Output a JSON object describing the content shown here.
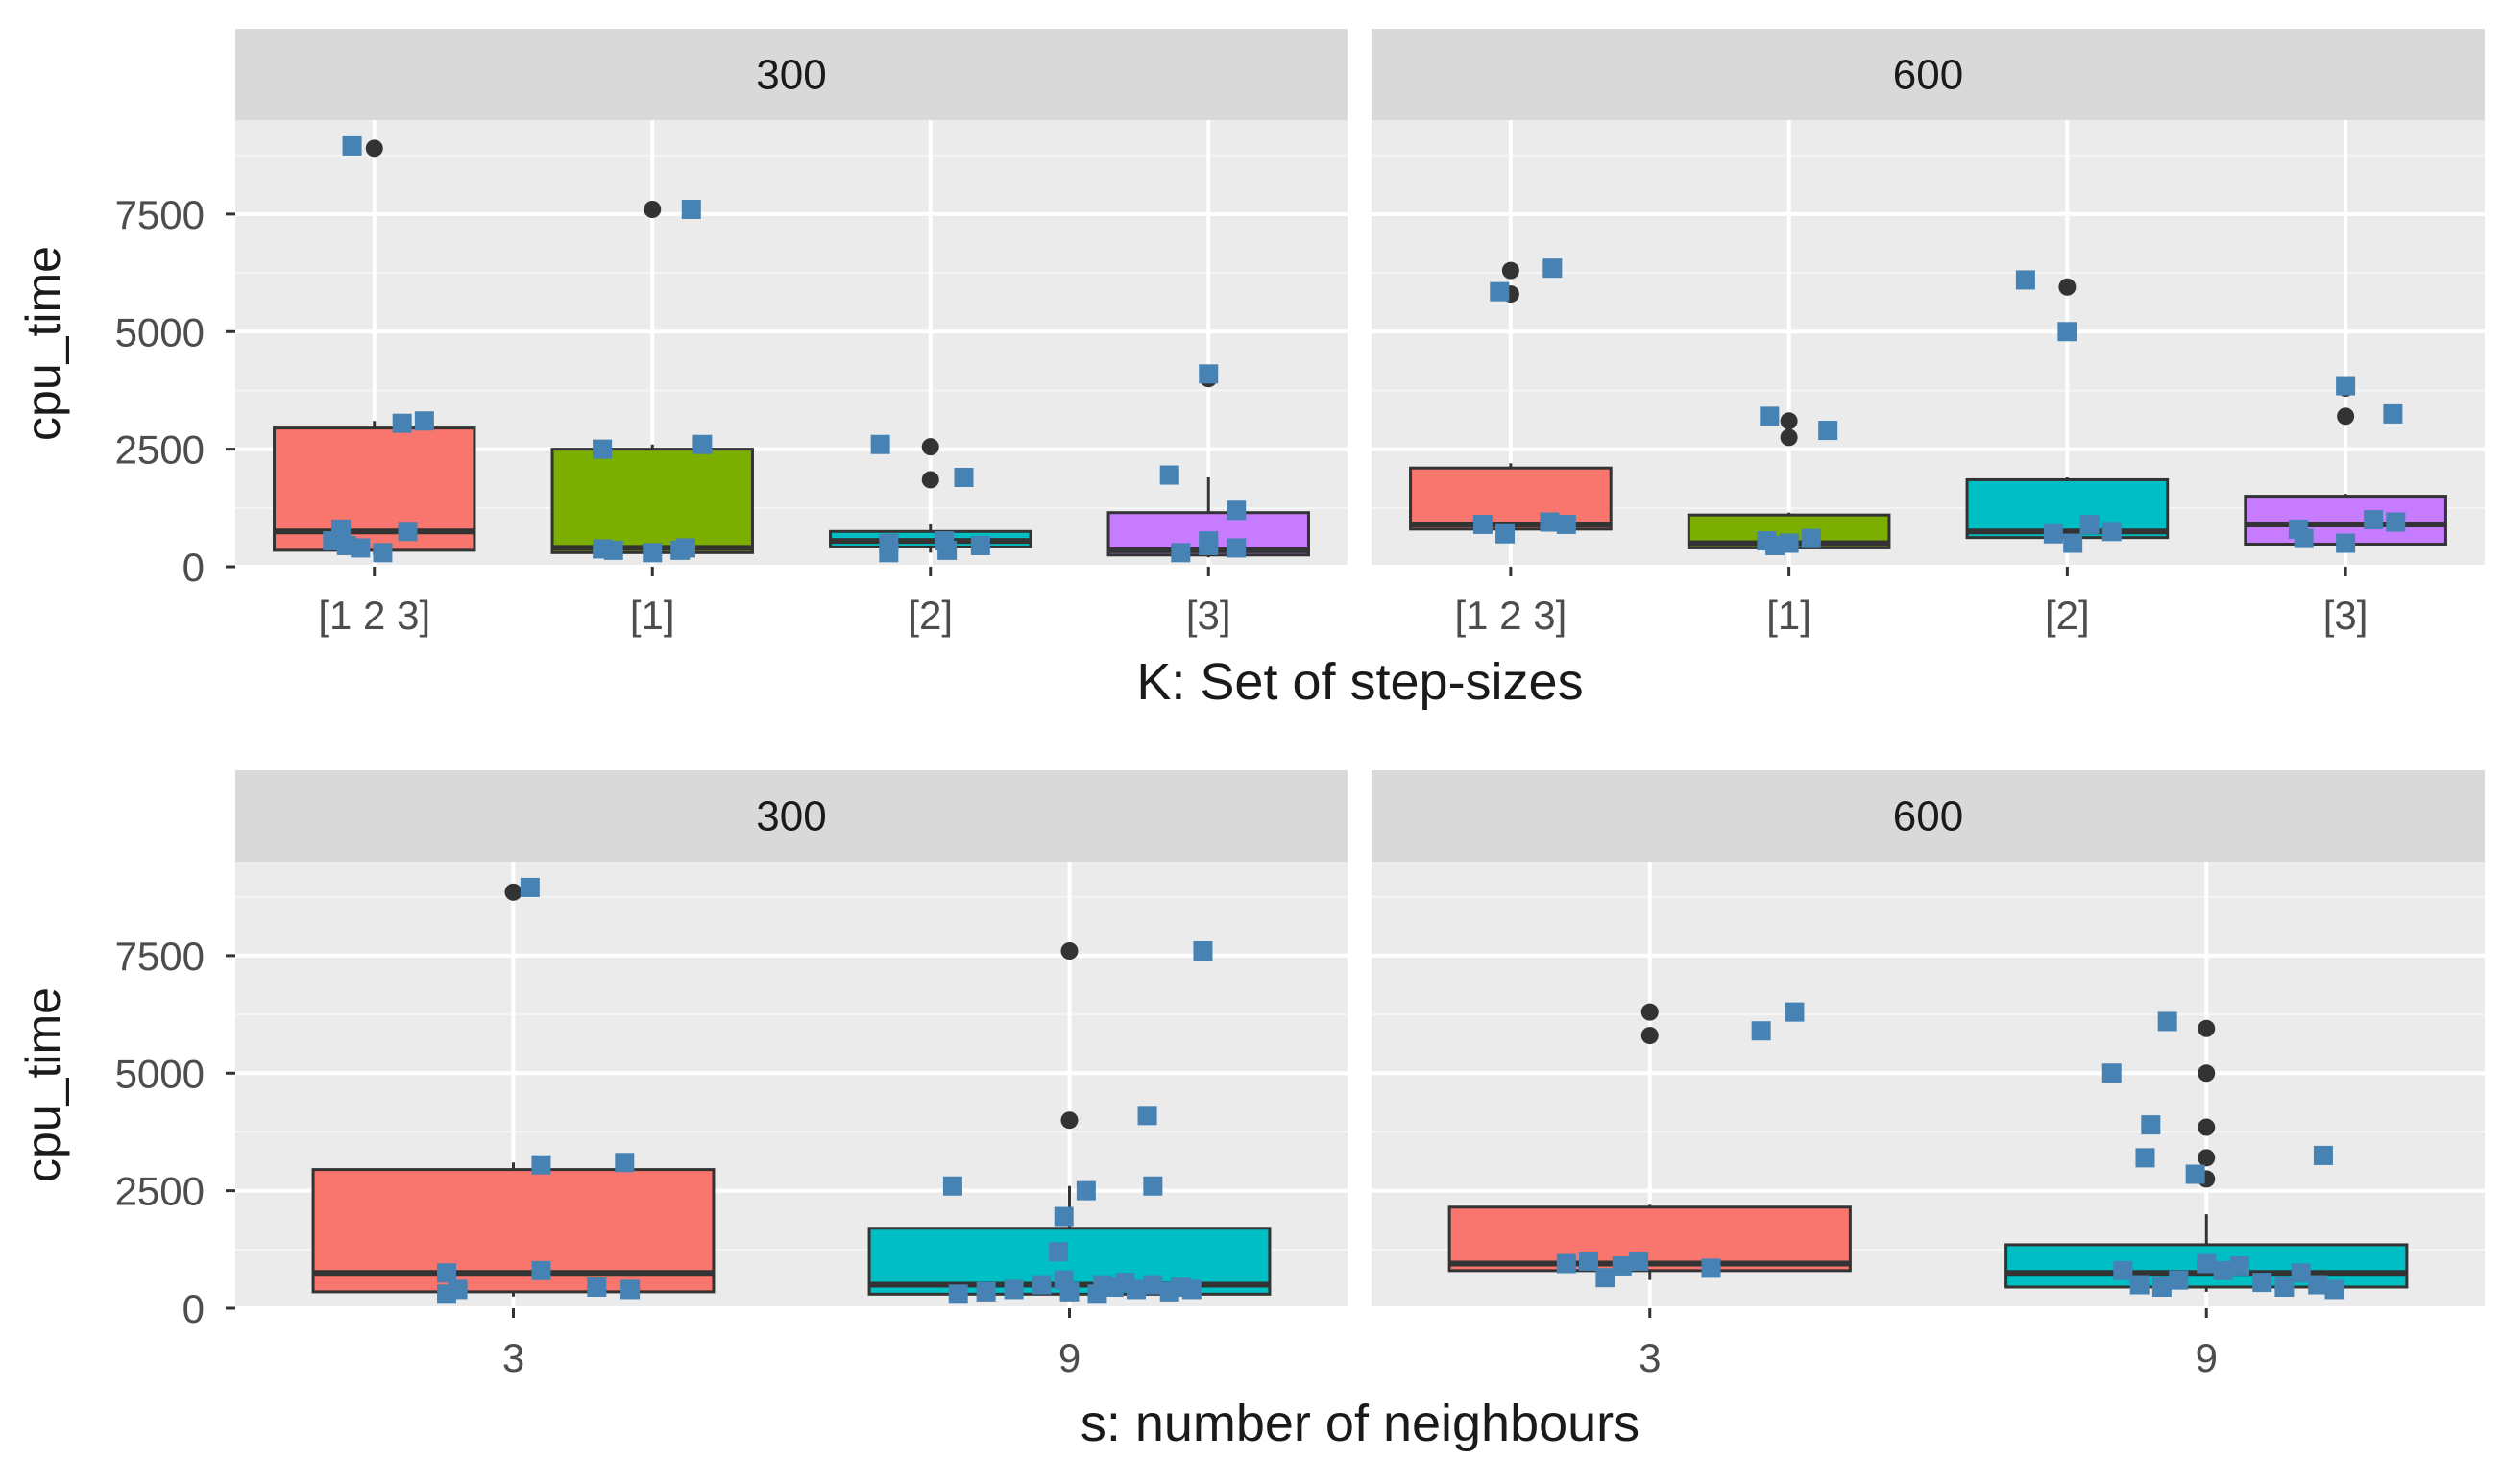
{
  "colors": {
    "panel_bg": "#EBEBEB",
    "strip_bg": "#D9D9D9",
    "grid_major": "#FFFFFF",
    "grid_minor": "#F5F5F5",
    "axis_text": "#4D4D4D",
    "title_text": "#1A1A1A",
    "box_line": "#333333",
    "outlier": "#333333",
    "jitter": "#4682B4",
    "red": "#F8766D",
    "green": "#7CAE00",
    "cyan": "#00BFC4",
    "purple": "#C77CFF"
  },
  "chart_data": [
    {
      "type": "box",
      "title": "",
      "xlabel": "K: Set of step-sizes",
      "ylabel": "cpu_time",
      "ylim": [
        0,
        9500
      ],
      "yticks": [
        0,
        2500,
        5000,
        7500
      ],
      "ytick_labels": [
        "0",
        "2500",
        "5000",
        "7500"
      ],
      "categories": [
        "[1 2 3]",
        "[1]",
        "[2]",
        "[3]"
      ],
      "box_colors": [
        "red",
        "green",
        "cyan",
        "purple"
      ],
      "facets": [
        {
          "label": "300",
          "boxes": [
            {
              "q1": 350,
              "median": 750,
              "q3": 2950,
              "wlow": 250,
              "whigh": 3100,
              "outliers": [
                8900
              ]
            },
            {
              "q1": 300,
              "median": 400,
              "q3": 2500,
              "wlow": 250,
              "whigh": 2600,
              "outliers": [
                7600
              ]
            },
            {
              "q1": 420,
              "median": 550,
              "q3": 750,
              "wlow": 300,
              "whigh": 900,
              "outliers": [
                1850,
                2550
              ]
            },
            {
              "q1": 250,
              "median": 350,
              "q3": 1150,
              "wlow": 200,
              "whigh": 1900,
              "outliers": [
                4000
              ]
            }
          ],
          "jitter": [
            [
              [
                -0.08,
                8950
              ],
              [
                0.18,
                3100
              ],
              [
                0.1,
                3050
              ],
              [
                0.12,
                750
              ],
              [
                -0.12,
                800
              ],
              [
                -0.05,
                400
              ],
              [
                -0.15,
                550
              ],
              [
                0.03,
                300
              ],
              [
                -0.1,
                450
              ]
            ],
            [
              [
                -0.18,
                2500
              ],
              [
                0.18,
                2600
              ],
              [
                0.14,
                7600
              ],
              [
                0.1,
                350
              ],
              [
                -0.14,
                350
              ],
              [
                0.0,
                300
              ],
              [
                -0.18,
                380
              ],
              [
                0.12,
                400
              ]
            ],
            [
              [
                -0.18,
                2600
              ],
              [
                0.12,
                1900
              ],
              [
                -0.15,
                500
              ],
              [
                0.05,
                550
              ],
              [
                -0.15,
                300
              ],
              [
                0.18,
                450
              ],
              [
                0.06,
                350
              ]
            ],
            [
              [
                -0.14,
                1950
              ],
              [
                0.0,
                4100
              ],
              [
                0.1,
                1200
              ],
              [
                -0.1,
                300
              ],
              [
                0.0,
                550
              ],
              [
                0.1,
                400
              ],
              [
                0.0,
                450
              ]
            ]
          ]
        },
        {
          "label": "600",
          "boxes": [
            {
              "q1": 800,
              "median": 900,
              "q3": 2100,
              "wlow": 600,
              "whigh": 2200,
              "outliers": [
                5800,
                6300
              ]
            },
            {
              "q1": 400,
              "median": 500,
              "q3": 1100,
              "wlow": 350,
              "whigh": 1150,
              "outliers": [
                2750,
                3100
              ]
            },
            {
              "q1": 620,
              "median": 750,
              "q3": 1850,
              "wlow": 450,
              "whigh": 1900,
              "outliers": [
                5000,
                5950
              ]
            },
            {
              "q1": 480,
              "median": 900,
              "q3": 1500,
              "wlow": 450,
              "whigh": 1550,
              "outliers": [
                3200,
                3800
              ]
            }
          ],
          "jitter": [
            [
              [
                -0.04,
                5850
              ],
              [
                0.15,
                6350
              ],
              [
                -0.1,
                900
              ],
              [
                -0.02,
                700
              ],
              [
                0.14,
                950
              ],
              [
                0.2,
                900
              ]
            ],
            [
              [
                -0.07,
                3200
              ],
              [
                0.14,
                2900
              ],
              [
                -0.08,
                550
              ],
              [
                0.0,
                500
              ],
              [
                0.08,
                600
              ],
              [
                -0.05,
                450
              ]
            ],
            [
              [
                -0.15,
                6100
              ],
              [
                0.0,
                5000
              ],
              [
                -0.05,
                700
              ],
              [
                0.02,
                500
              ],
              [
                0.08,
                900
              ],
              [
                0.16,
                750
              ]
            ],
            [
              [
                0.0,
                3850
              ],
              [
                0.17,
                3250
              ],
              [
                -0.17,
                800
              ],
              [
                0.1,
                1000
              ],
              [
                0.0,
                500
              ],
              [
                0.18,
                950
              ],
              [
                -0.15,
                600
              ]
            ]
          ]
        }
      ]
    },
    {
      "type": "box",
      "title": "",
      "xlabel": "s: number of neighbours",
      "ylabel": "cpu_time",
      "ylim": [
        0,
        9500
      ],
      "yticks": [
        0,
        2500,
        5000,
        7500
      ],
      "ytick_labels": [
        "0",
        "2500",
        "5000",
        "7500"
      ],
      "categories": [
        "3",
        "9"
      ],
      "box_colors": [
        "red",
        "cyan"
      ],
      "facets": [
        {
          "label": "300",
          "boxes": [
            {
              "q1": 350,
              "median": 750,
              "q3": 2950,
              "wlow": 250,
              "whigh": 3100,
              "outliers": [
                8850
              ]
            },
            {
              "q1": 300,
              "median": 500,
              "q3": 1700,
              "wlow": 250,
              "whigh": 2600,
              "outliers": [
                4000,
                7600
              ]
            }
          ],
          "jitter": [
            [
              [
                0.03,
                8950
              ],
              [
                0.05,
                3050
              ],
              [
                0.2,
                3100
              ],
              [
                -0.12,
                750
              ],
              [
                0.05,
                800
              ],
              [
                0.15,
                450
              ],
              [
                -0.12,
                300
              ],
              [
                -0.1,
                400
              ],
              [
                0.21,
                400
              ]
            ],
            [
              [
                -0.21,
                2600
              ],
              [
                -0.01,
                1950
              ],
              [
                0.03,
                2500
              ],
              [
                0.15,
                2600
              ],
              [
                0.14,
                4100
              ],
              [
                0.24,
                7600
              ],
              [
                -0.02,
                1200
              ],
              [
                -0.2,
                300
              ],
              [
                -0.15,
                350
              ],
              [
                -0.1,
                400
              ],
              [
                -0.05,
                500
              ],
              [
                0.0,
                350
              ],
              [
                0.05,
                300
              ],
              [
                0.08,
                450
              ],
              [
                0.1,
                550
              ],
              [
                0.12,
                400
              ],
              [
                0.15,
                500
              ],
              [
                0.18,
                350
              ],
              [
                0.2,
                450
              ],
              [
                0.22,
                400
              ],
              [
                -0.01,
                600
              ],
              [
                0.06,
                500
              ]
            ]
          ]
        },
        {
          "label": "600",
          "boxes": [
            {
              "q1": 800,
              "median": 950,
              "q3": 2150,
              "wlow": 600,
              "whigh": 2200,
              "outliers": [
                5800,
                6300
              ]
            },
            {
              "q1": 450,
              "median": 750,
              "q3": 1350,
              "wlow": 350,
              "whigh": 2000,
              "outliers": [
                2750,
                3200,
                3850,
                5000,
                5950
              ]
            }
          ],
          "jitter": [
            [
              [
                0.2,
                5900
              ],
              [
                0.26,
                6300
              ],
              [
                -0.15,
                950
              ],
              [
                -0.11,
                1000
              ],
              [
                -0.08,
                650
              ],
              [
                -0.05,
                900
              ],
              [
                -0.02,
                1000
              ],
              [
                0.11,
                850
              ]
            ],
            [
              [
                -0.17,
                5000
              ],
              [
                -0.07,
                6100
              ],
              [
                -0.1,
                3900
              ],
              [
                -0.11,
                3200
              ],
              [
                -0.02,
                2850
              ],
              [
                0.21,
                3250
              ],
              [
                -0.15,
                800
              ],
              [
                -0.12,
                500
              ],
              [
                -0.08,
                450
              ],
              [
                -0.05,
                600
              ],
              [
                0.0,
                950
              ],
              [
                0.03,
                800
              ],
              [
                0.06,
                900
              ],
              [
                0.1,
                550
              ],
              [
                0.14,
                450
              ],
              [
                0.17,
                750
              ],
              [
                0.2,
                500
              ],
              [
                0.23,
                400
              ]
            ]
          ]
        }
      ]
    }
  ]
}
